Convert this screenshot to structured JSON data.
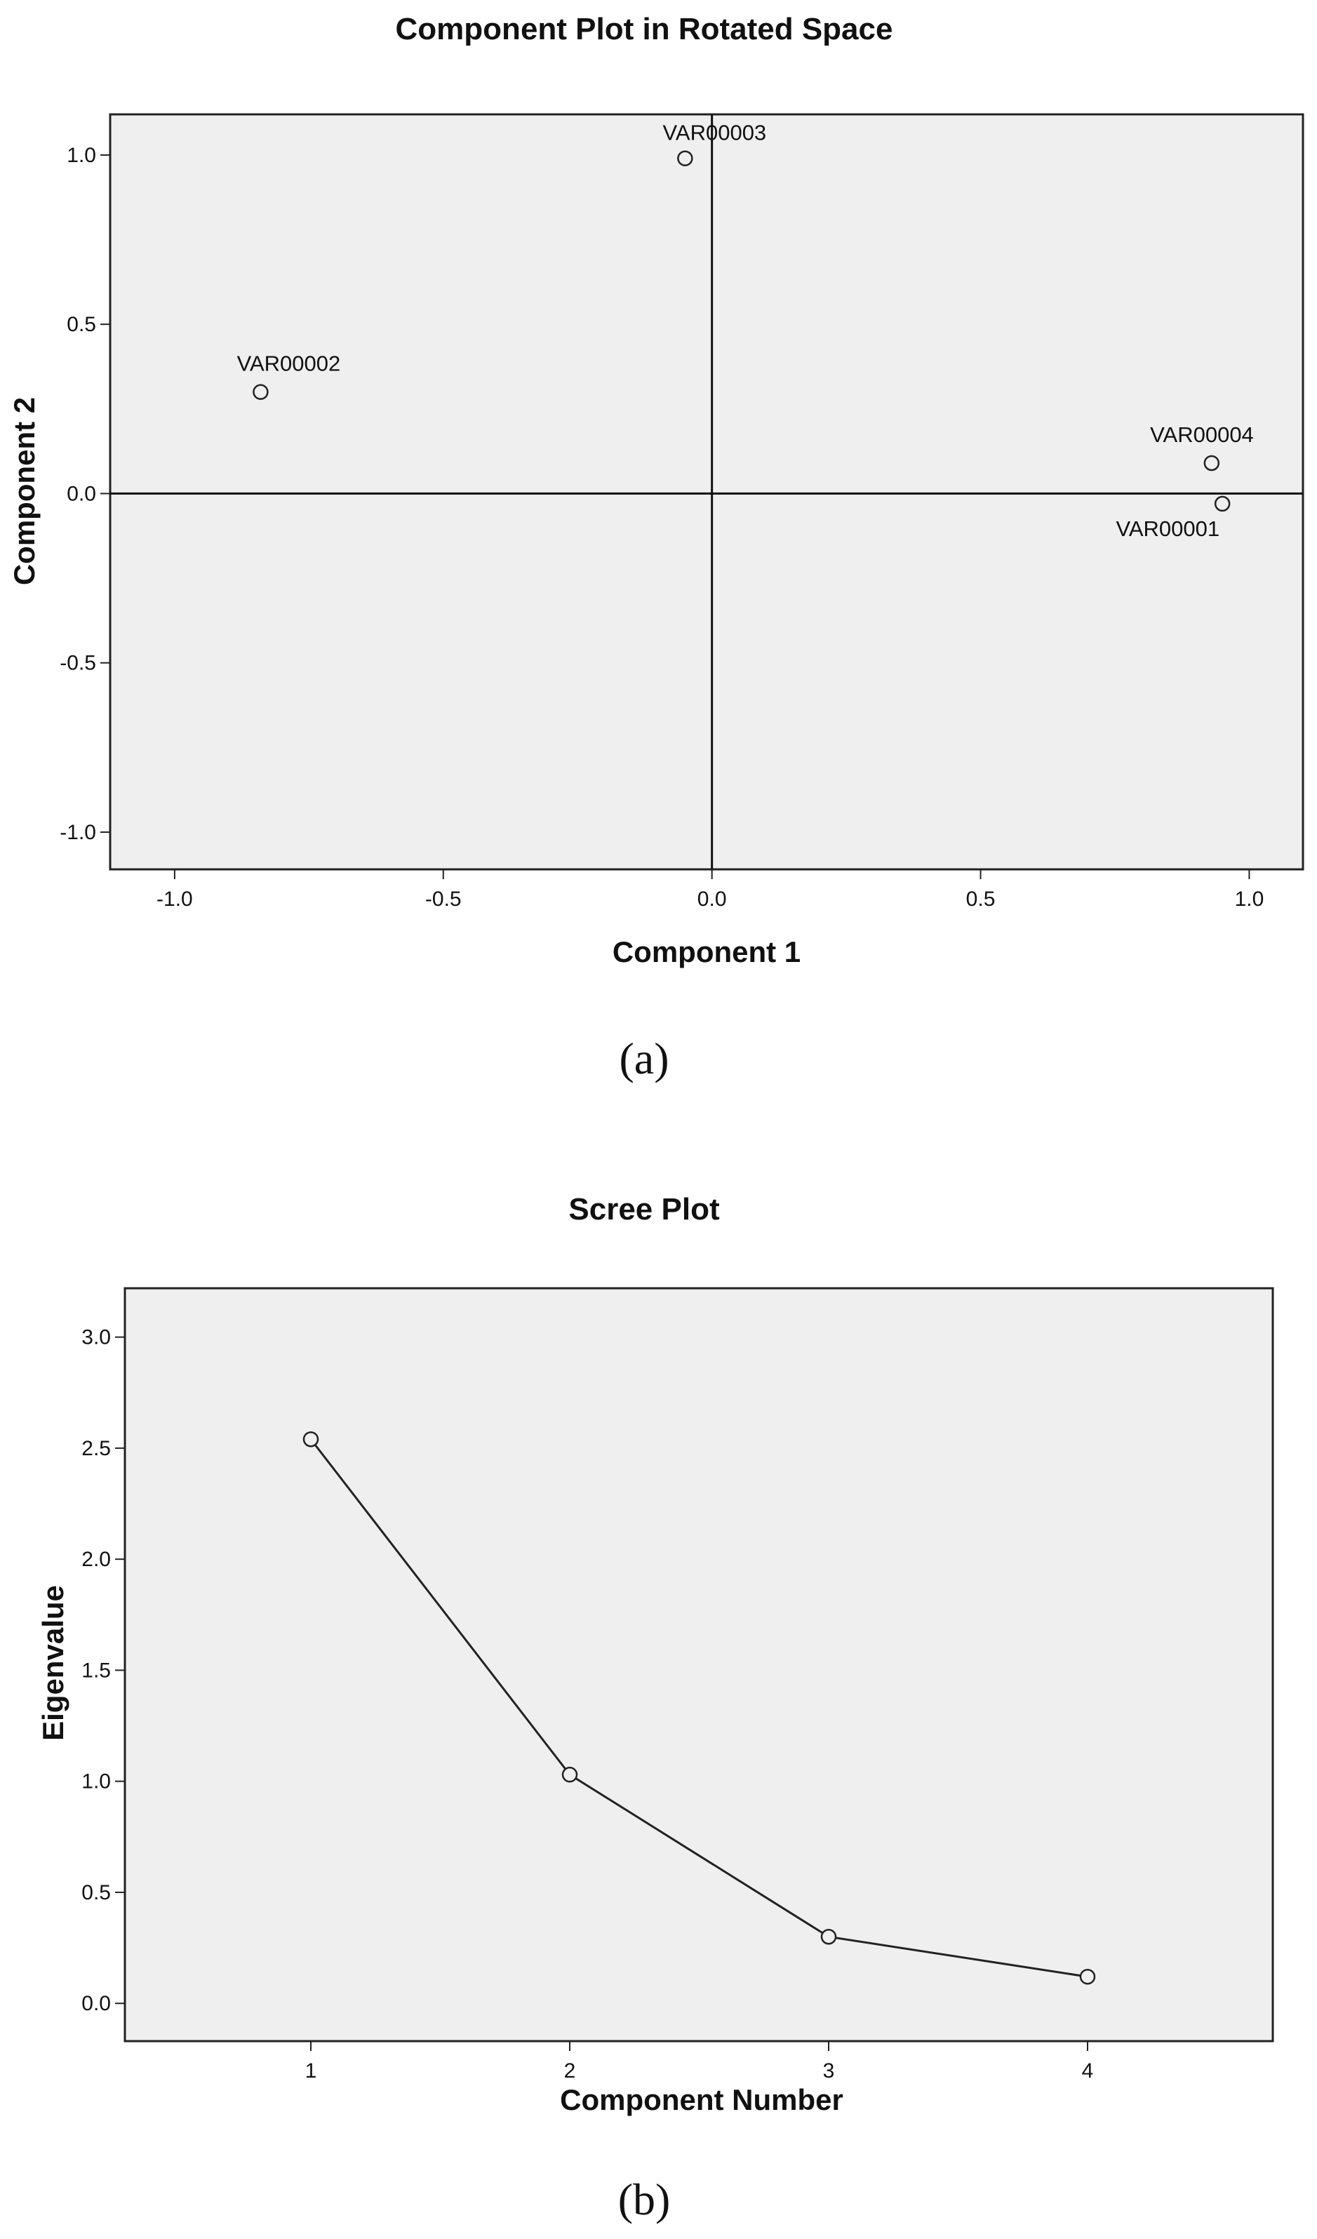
{
  "chart_data": [
    {
      "panel_label": "(a)",
      "type": "scatter",
      "title": "Component Plot in Rotated Space",
      "xlabel": "Component 1",
      "ylabel": "Component 2",
      "xlim": [
        -1.12,
        1.1
      ],
      "ylim": [
        -1.11,
        1.12
      ],
      "x_ticks": [
        "-1.0",
        "-0.5",
        "0.0",
        "0.5",
        "1.0"
      ],
      "y_ticks": [
        "1.0",
        "0.5",
        "0.0",
        "-0.5",
        "-1.0"
      ],
      "grid": false,
      "reference_lines": {
        "x": 0,
        "y": 0
      },
      "points": [
        {
          "label": "VAR00003",
          "x": -0.05,
          "y": 0.99
        },
        {
          "label": "VAR00002",
          "x": -0.84,
          "y": 0.3
        },
        {
          "label": "VAR00004",
          "x": 0.93,
          "y": 0.09
        },
        {
          "label": "VAR00001",
          "x": 0.95,
          "y": -0.03
        }
      ],
      "background_color": "#efefef"
    },
    {
      "panel_label": "(b)",
      "type": "line",
      "title": "Scree Plot",
      "xlabel": "Component Number",
      "ylabel": "Eigenvalue",
      "x": [
        "1",
        "2",
        "3",
        "4"
      ],
      "values": [
        2.54,
        1.03,
        0.3,
        0.12
      ],
      "ylim": [
        -0.17,
        3.22
      ],
      "y_ticks": [
        "3.0",
        "2.5",
        "2.0",
        "1.5",
        "1.0",
        "0.5",
        "0.0"
      ],
      "grid": false,
      "markers": "circle",
      "background_color": "#efefef"
    }
  ]
}
